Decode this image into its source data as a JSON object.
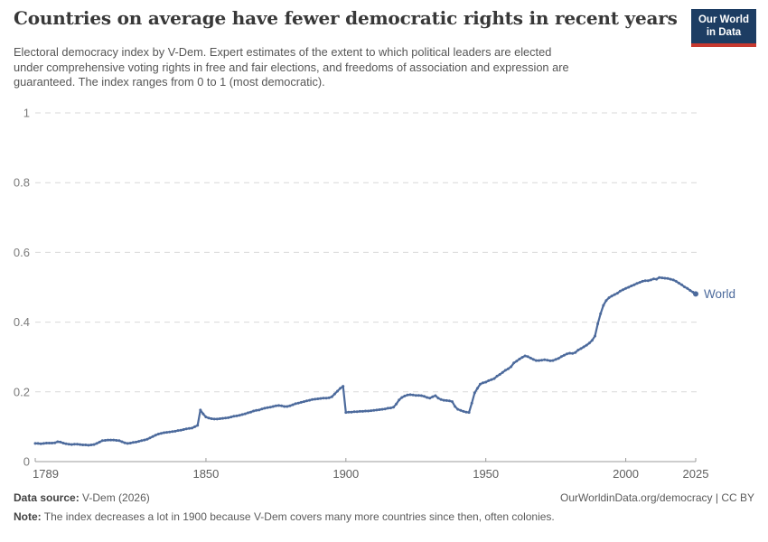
{
  "header": {
    "title": "Countries on average have fewer democratic rights in recent years",
    "subtitle_lines": [
      "Electoral democracy index by V-Dem. Expert estimates of the extent to which political leaders are elected",
      "under comprehensive voting rights in free and fair elections, and freedoms of association and expression are",
      "guaranteed. The index ranges from 0 to 1 (most democratic)."
    ],
    "logo": {
      "line1": "Our World",
      "line2": "in Data"
    }
  },
  "footer": {
    "datasource_label": "Data source:",
    "datasource_value": " V-Dem (2026)",
    "origin": "OurWorldinData.org/democracy | CC BY",
    "note_label": "Note:",
    "note_value": " The index decreases a lot in 1900 because V-Dem covers many more countries since then, often colonies."
  },
  "colors": {
    "series_blue": "#4c6a9c",
    "gridline": "#d9d9d9",
    "axis": "#9b9b9b",
    "logo_navy": "#1d3d63",
    "logo_red": "#c7392f"
  },
  "chart_data": {
    "type": "line",
    "title": "Countries on average have fewer democratic rights in recent years",
    "xlabel": "",
    "ylabel": "",
    "xlim": [
      1789,
      2025
    ],
    "ylim": [
      0,
      1
    ],
    "x_ticks": [
      1789,
      1850,
      1900,
      1950,
      2000,
      2025
    ],
    "y_ticks": [
      0,
      0.2,
      0.4,
      0.6,
      0.8,
      1
    ],
    "grid": "horizontal-dashed",
    "legend_position": "end-of-line-label",
    "series": [
      {
        "name": "World",
        "color": "#4c6a9c",
        "x_start": 1789,
        "x_step": 1,
        "x_end": 2025,
        "values": [
          0.052,
          0.052,
          0.051,
          0.052,
          0.053,
          0.053,
          0.053,
          0.054,
          0.057,
          0.056,
          0.053,
          0.051,
          0.05,
          0.049,
          0.05,
          0.05,
          0.049,
          0.048,
          0.048,
          0.047,
          0.048,
          0.049,
          0.052,
          0.056,
          0.06,
          0.061,
          0.062,
          0.062,
          0.062,
          0.061,
          0.06,
          0.057,
          0.054,
          0.052,
          0.053,
          0.055,
          0.056,
          0.058,
          0.06,
          0.062,
          0.064,
          0.068,
          0.072,
          0.076,
          0.079,
          0.081,
          0.083,
          0.084,
          0.085,
          0.086,
          0.087,
          0.089,
          0.09,
          0.092,
          0.094,
          0.095,
          0.096,
          0.1,
          0.104,
          0.148,
          0.137,
          0.128,
          0.125,
          0.123,
          0.122,
          0.122,
          0.123,
          0.124,
          0.125,
          0.126,
          0.128,
          0.13,
          0.131,
          0.133,
          0.135,
          0.137,
          0.14,
          0.142,
          0.145,
          0.147,
          0.148,
          0.151,
          0.153,
          0.155,
          0.156,
          0.158,
          0.16,
          0.161,
          0.16,
          0.158,
          0.158,
          0.16,
          0.163,
          0.166,
          0.168,
          0.17,
          0.172,
          0.174,
          0.176,
          0.178,
          0.179,
          0.18,
          0.181,
          0.182,
          0.182,
          0.183,
          0.186,
          0.194,
          0.202,
          0.21,
          0.216,
          0.141,
          0.142,
          0.142,
          0.143,
          0.143,
          0.144,
          0.144,
          0.145,
          0.145,
          0.146,
          0.147,
          0.148,
          0.149,
          0.15,
          0.151,
          0.153,
          0.154,
          0.156,
          0.165,
          0.177,
          0.184,
          0.188,
          0.191,
          0.192,
          0.191,
          0.19,
          0.19,
          0.189,
          0.187,
          0.184,
          0.182,
          0.186,
          0.189,
          0.182,
          0.178,
          0.176,
          0.175,
          0.174,
          0.172,
          0.158,
          0.15,
          0.147,
          0.144,
          0.142,
          0.141,
          0.168,
          0.197,
          0.21,
          0.222,
          0.226,
          0.228,
          0.232,
          0.235,
          0.238,
          0.245,
          0.25,
          0.256,
          0.262,
          0.266,
          0.272,
          0.283,
          0.288,
          0.294,
          0.299,
          0.303,
          0.301,
          0.297,
          0.293,
          0.29,
          0.29,
          0.291,
          0.292,
          0.291,
          0.289,
          0.29,
          0.293,
          0.296,
          0.301,
          0.305,
          0.309,
          0.311,
          0.31,
          0.313,
          0.32,
          0.324,
          0.329,
          0.334,
          0.34,
          0.348,
          0.36,
          0.395,
          0.424,
          0.448,
          0.462,
          0.47,
          0.475,
          0.479,
          0.483,
          0.489,
          0.493,
          0.497,
          0.5,
          0.504,
          0.507,
          0.511,
          0.514,
          0.517,
          0.519,
          0.519,
          0.521,
          0.524,
          0.523,
          0.528,
          0.527,
          0.526,
          0.525,
          0.523,
          0.521,
          0.517,
          0.512,
          0.507,
          0.501,
          0.497,
          0.491,
          0.486,
          0.481
        ]
      }
    ]
  }
}
